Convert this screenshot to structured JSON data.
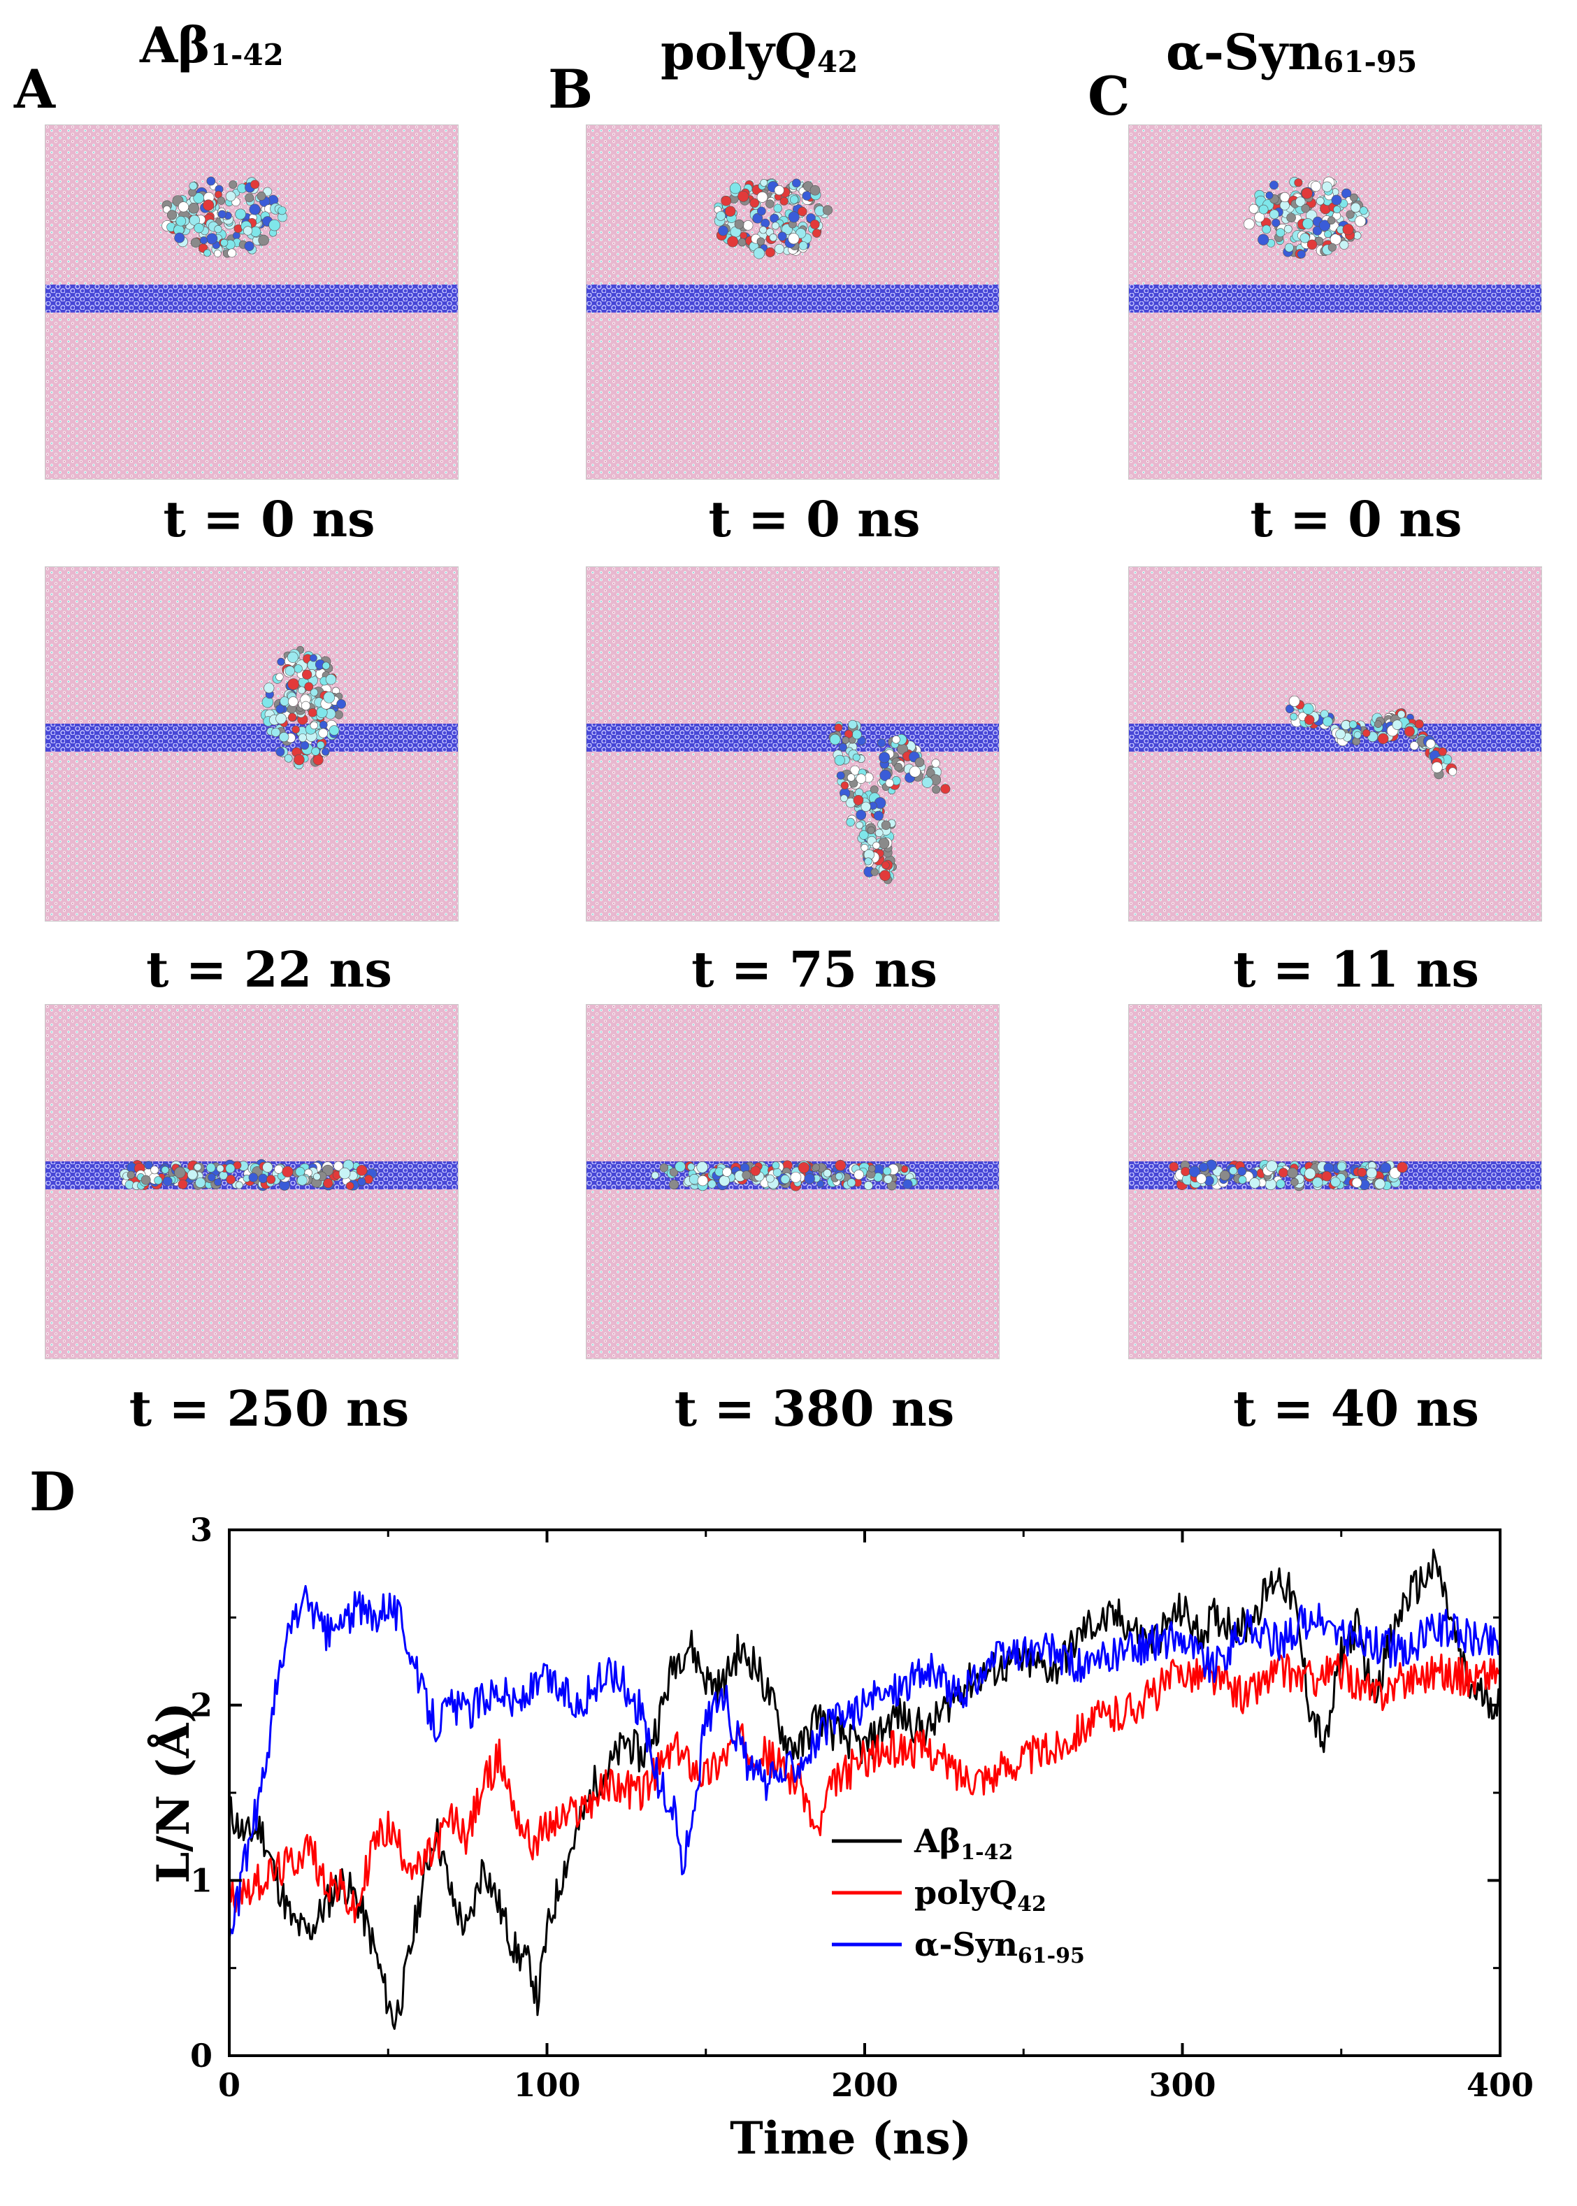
{
  "colors": {
    "ab": "#000000",
    "polyq": "#ff0000",
    "syn": "#0000ff",
    "sheet": "#e3a6c4",
    "channel": "#4b4bdd"
  },
  "panels": {
    "A": {
      "label": "A",
      "title_main": "Aβ",
      "title_sub": "1-42",
      "snapshots": [
        {
          "time_label": "t = 0 ns"
        },
        {
          "time_label": "t = 22 ns"
        },
        {
          "time_label": "t = 250 ns"
        }
      ]
    },
    "B": {
      "label": "B",
      "title_main": "polyQ",
      "title_sub": "42",
      "snapshots": [
        {
          "time_label": "t = 0 ns"
        },
        {
          "time_label": "t = 75 ns"
        },
        {
          "time_label": "t = 380 ns"
        }
      ]
    },
    "C": {
      "label": "C",
      "title_main": "α-Syn",
      "title_sub": "61-95",
      "snapshots": [
        {
          "time_label": "t = 0 ns"
        },
        {
          "time_label": "t = 11 ns"
        },
        {
          "time_label": "t = 40 ns"
        }
      ]
    }
  },
  "chart_data": {
    "panel_label": "D",
    "type": "line",
    "xlabel": "Time (ns)",
    "ylabel": "L/N (Å)",
    "xlim": [
      0,
      400
    ],
    "ylim": [
      0,
      3
    ],
    "xticks": [
      0,
      100,
      200,
      300,
      400
    ],
    "yticks": [
      0,
      1,
      2,
      3
    ],
    "legend_position": "lower-center",
    "series": [
      {
        "name": "Aβ1-42",
        "legend_main": "Aβ",
        "legend_sub": "1-42",
        "color": "#000000",
        "x": [
          0,
          5,
          10,
          15,
          20,
          25,
          30,
          35,
          40,
          45,
          50,
          52,
          55,
          60,
          65,
          70,
          75,
          80,
          85,
          90,
          95,
          97,
          100,
          105,
          110,
          115,
          120,
          125,
          130,
          135,
          140,
          145,
          150,
          155,
          160,
          165,
          170,
          175,
          180,
          185,
          190,
          200,
          210,
          220,
          230,
          240,
          250,
          260,
          270,
          280,
          290,
          300,
          305,
          310,
          320,
          330,
          335,
          340,
          345,
          350,
          355,
          360,
          370,
          380,
          385,
          390,
          395,
          400
        ],
        "y": [
          1.4,
          1.25,
          1.3,
          1.0,
          0.75,
          0.7,
          0.85,
          1.0,
          0.9,
          0.65,
          0.3,
          0.2,
          0.4,
          0.9,
          1.3,
          0.9,
          0.7,
          1.1,
          0.85,
          0.6,
          0.5,
          0.3,
          0.7,
          1.05,
          1.3,
          1.55,
          1.65,
          1.8,
          1.7,
          1.9,
          2.25,
          2.35,
          2.15,
          2.1,
          2.3,
          2.25,
          2.05,
          1.8,
          1.75,
          1.95,
          1.85,
          1.75,
          1.95,
          1.85,
          2.1,
          2.2,
          2.25,
          2.2,
          2.45,
          2.5,
          2.35,
          2.55,
          2.4,
          2.5,
          2.45,
          2.75,
          2.6,
          2.0,
          1.75,
          2.3,
          2.45,
          2.05,
          2.6,
          2.8,
          2.45,
          2.1,
          2.05,
          2.0
        ]
      },
      {
        "name": "polyQ42",
        "legend_main": "polyQ",
        "legend_sub": "42",
        "color": "#ff0000",
        "x": [
          0,
          5,
          10,
          15,
          20,
          25,
          30,
          35,
          40,
          45,
          50,
          55,
          60,
          65,
          70,
          75,
          80,
          85,
          90,
          95,
          100,
          110,
          120,
          130,
          140,
          150,
          160,
          170,
          180,
          185,
          190,
          200,
          210,
          220,
          230,
          240,
          250,
          260,
          270,
          280,
          290,
          300,
          310,
          320,
          330,
          340,
          350,
          360,
          370,
          380,
          390,
          400
        ],
        "y": [
          0.9,
          0.95,
          1.0,
          1.05,
          1.1,
          1.2,
          1.0,
          0.95,
          0.8,
          1.2,
          1.3,
          1.15,
          1.05,
          1.2,
          1.35,
          1.25,
          1.55,
          1.7,
          1.4,
          1.2,
          1.3,
          1.4,
          1.55,
          1.5,
          1.75,
          1.6,
          1.8,
          1.7,
          1.55,
          1.25,
          1.55,
          1.7,
          1.75,
          1.75,
          1.6,
          1.6,
          1.7,
          1.75,
          1.9,
          1.95,
          2.05,
          2.2,
          2.15,
          2.05,
          2.2,
          2.15,
          2.2,
          2.05,
          2.15,
          2.2,
          2.15,
          2.2
        ]
      },
      {
        "name": "α-Syn61-95",
        "legend_main": "α-Syn",
        "legend_sub": "61-95",
        "color": "#0000ff",
        "x": [
          0,
          3,
          6,
          10,
          15,
          20,
          25,
          30,
          35,
          40,
          45,
          50,
          55,
          60,
          65,
          70,
          75,
          80,
          85,
          90,
          100,
          110,
          120,
          125,
          130,
          135,
          140,
          143,
          145,
          150,
          155,
          160,
          165,
          170,
          180,
          190,
          200,
          210,
          220,
          230,
          240,
          250,
          260,
          270,
          280,
          290,
          300,
          310,
          320,
          330,
          340,
          350,
          360,
          370,
          380,
          390,
          400
        ],
        "y": [
          0.65,
          0.9,
          1.2,
          1.5,
          2.1,
          2.5,
          2.6,
          2.4,
          2.45,
          2.55,
          2.5,
          2.6,
          2.45,
          2.1,
          1.9,
          2.0,
          1.95,
          2.05,
          2.1,
          2.0,
          2.15,
          2.0,
          2.2,
          2.1,
          1.95,
          1.55,
          1.4,
          1.05,
          1.3,
          1.9,
          2.1,
          1.8,
          1.6,
          1.55,
          1.7,
          1.9,
          2.0,
          2.1,
          2.2,
          2.05,
          2.25,
          2.3,
          2.3,
          2.2,
          2.3,
          2.35,
          2.4,
          2.2,
          2.45,
          2.35,
          2.5,
          2.4,
          2.35,
          2.3,
          2.45,
          2.4,
          2.35
        ]
      }
    ]
  }
}
